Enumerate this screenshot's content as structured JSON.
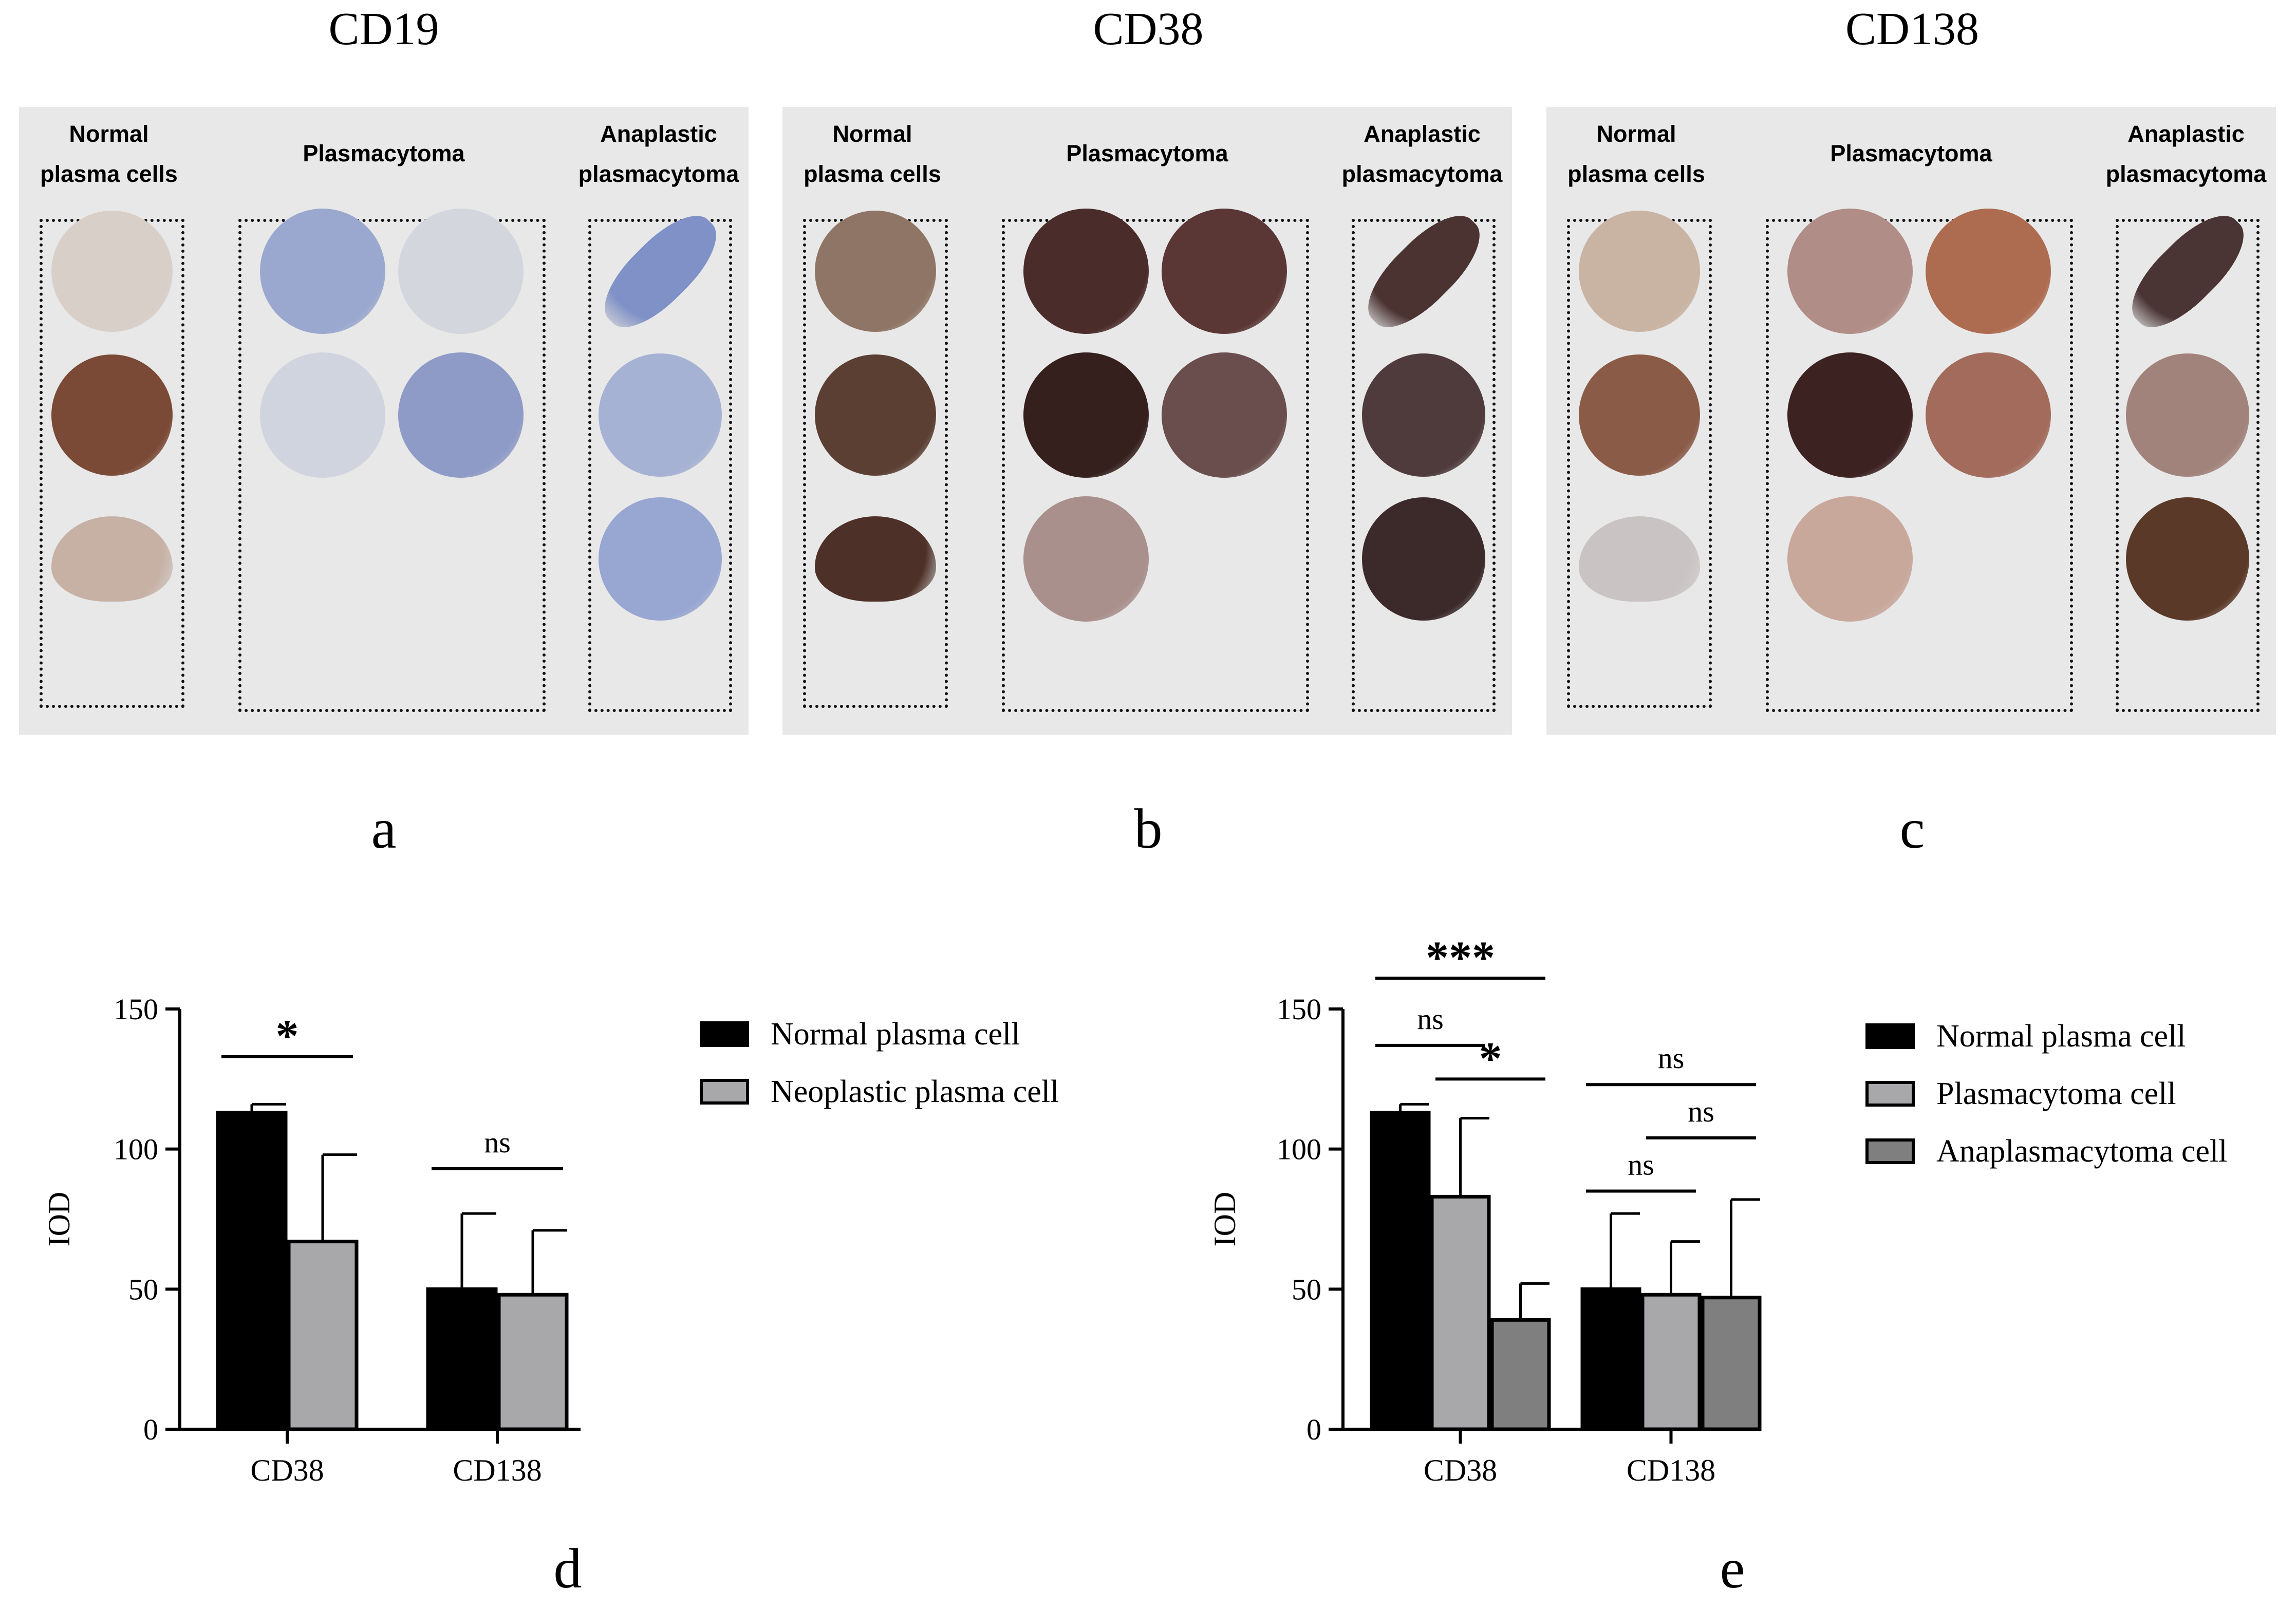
{
  "markers": [
    "CD19",
    "CD38",
    "CD138"
  ],
  "panel_letters": [
    "a",
    "b",
    "c",
    "d",
    "e"
  ],
  "tissue_groups": {
    "normal": "Normal\nplasma cells",
    "plasmacytoma": "Plasmacytoma",
    "anaplastic": "Anaplastic\nplasmacytoma"
  },
  "stain_colors": {
    "CD19": {
      "normal": [
        "#d9cfc9",
        "#7a4a36",
        "#c7b0a4"
      ],
      "plasma": [
        "#9aa8cf",
        "#d3d6dd",
        "#d0d4de",
        "#8f9bc7"
      ],
      "anaplastic": [
        "#7f91c7",
        "#a6b2d4",
        "#97a7d2"
      ]
    },
    "CD38": {
      "normal": [
        "#8e7565",
        "#5b3f33",
        "#4d3027"
      ],
      "plasma": [
        "#4a2c2a",
        "#5a3634",
        "#35201e",
        "#6a4e4d",
        "#a9908c"
      ],
      "anaplastic": [
        "#4b3332",
        "#4f3b3b",
        "#3c2a2b"
      ]
    },
    "CD138": {
      "normal": [
        "#c9b3a3",
        "#8a5b47",
        "#c9c3c3"
      ],
      "plasma": [
        "#b08d86",
        "#ad6b50",
        "#3d2222",
        "#a26b5c",
        "#c9a89c"
      ],
      "anaplastic": [
        "#4a3434",
        "#a1837b",
        "#5b3928"
      ]
    }
  },
  "chart_data": [
    {
      "type": "bar",
      "panel": "d",
      "categories": [
        "CD38",
        "CD138"
      ],
      "series": [
        {
          "name": "Normal plasma cell",
          "color": "#000000",
          "values": [
            113,
            50
          ],
          "error": [
            3,
            27
          ]
        },
        {
          "name": "Neoplastic plasma cell",
          "color": "#a8a8ab",
          "values": [
            67,
            48
          ],
          "error": [
            31,
            23
          ]
        }
      ],
      "ylabel": "IOD",
      "ylim": [
        0,
        150
      ],
      "yticks": [
        0,
        50,
        100,
        150
      ],
      "significance": [
        {
          "label": "*",
          "category": "CD38",
          "from": 0,
          "to": 1,
          "y": 133
        },
        {
          "label": "ns",
          "category": "CD138",
          "from": 0,
          "to": 1,
          "y": 93
        }
      ],
      "legend": "right"
    },
    {
      "type": "bar",
      "panel": "e",
      "categories": [
        "CD38",
        "CD138"
      ],
      "series": [
        {
          "name": "Normal plasma cell",
          "color": "#000000",
          "values": [
            113,
            50
          ],
          "error": [
            3,
            27
          ]
        },
        {
          "name": "Plasmacytoma cell",
          "color": "#a8a8ab",
          "values": [
            83,
            48
          ],
          "error": [
            28,
            19
          ]
        },
        {
          "name": "Anaplasmacytoma cell",
          "color": "#7f7f7f",
          "values": [
            39,
            47
          ],
          "error": [
            13,
            35
          ]
        }
      ],
      "ylabel": "IOD",
      "ylim": [
        0,
        150
      ],
      "yticks": [
        0,
        50,
        100,
        150
      ],
      "significance": [
        {
          "label": "***",
          "category": "CD38",
          "from": 0,
          "to": 2,
          "y": 161
        },
        {
          "label": "ns",
          "category": "CD38",
          "from": 0,
          "to": 1,
          "y": 137
        },
        {
          "label": "*",
          "category": "CD38",
          "from": 1,
          "to": 2,
          "y": 125
        },
        {
          "label": "ns",
          "category": "CD138",
          "from": 0,
          "to": 2,
          "y": 123
        },
        {
          "label": "ns",
          "category": "CD138",
          "from": 1,
          "to": 2,
          "y": 104
        },
        {
          "label": "ns",
          "category": "CD138",
          "from": 0,
          "to": 1,
          "y": 85
        }
      ],
      "legend": "right"
    }
  ]
}
